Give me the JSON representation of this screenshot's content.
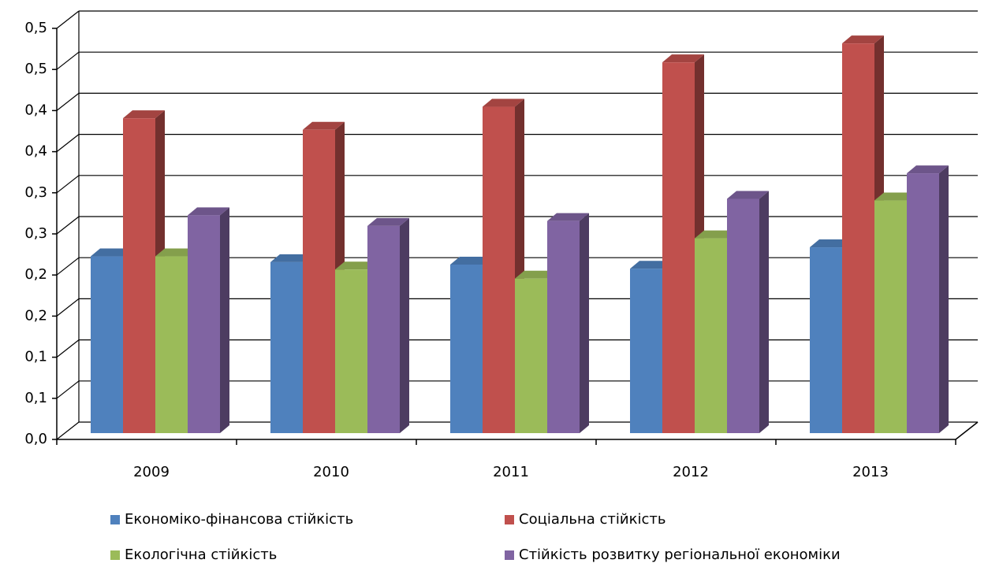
{
  "chart_data": {
    "type": "bar3d",
    "categories": [
      "2009",
      "2010",
      "2011",
      "2012",
      "2013"
    ],
    "series": [
      {
        "name": "Економіко-фінансова стійкість",
        "color": "#4f81bd",
        "values": [
          0.215,
          0.208,
          0.205,
          0.2,
          0.226
        ]
      },
      {
        "name": "Соціальна стійкість",
        "color": "#c0504d",
        "values": [
          0.383,
          0.369,
          0.397,
          0.451,
          0.474
        ]
      },
      {
        "name": "Екологічна стійкість",
        "color": "#9bbb59",
        "values": [
          0.215,
          0.199,
          0.188,
          0.237,
          0.283
        ]
      },
      {
        "name": "Стійкість розвитку регіональної економіки",
        "color": "#8064a2",
        "values": [
          0.265,
          0.252,
          0.258,
          0.285,
          0.316
        ]
      }
    ],
    "ylim": [
      0,
      0.5
    ],
    "yticks": [
      {
        "value": 0,
        "label": "0,0"
      },
      {
        "value": 0.05,
        "label": "0,1"
      },
      {
        "value": 0.1,
        "label": "0,1"
      },
      {
        "value": 0.15,
        "label": "0,2"
      },
      {
        "value": 0.2,
        "label": "0,2"
      },
      {
        "value": 0.25,
        "label": "0,3"
      },
      {
        "value": 0.3,
        "label": "0,3"
      },
      {
        "value": 0.35,
        "label": "0,4"
      },
      {
        "value": 0.4,
        "label": "0,4"
      },
      {
        "value": 0.45,
        "label": "0,5"
      },
      {
        "value": 0.5,
        "label": "0,5"
      }
    ],
    "grid": true
  }
}
